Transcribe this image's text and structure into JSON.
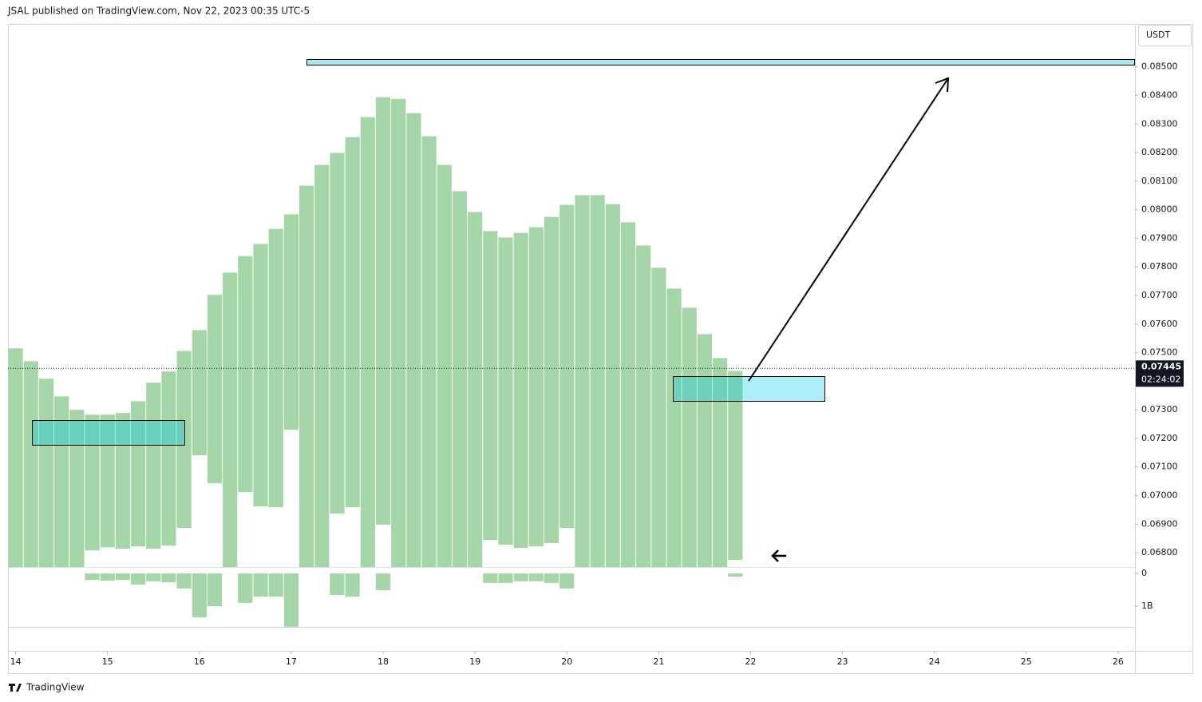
{
  "header": {
    "text": "JSAL published on TradingView.com, Nov 22, 2023 00:35 UTC-5"
  },
  "footer": {
    "brand": "TradingView"
  },
  "chart_data": {
    "type": "range-bar",
    "currency": "USDT",
    "color": "#a5d6a7",
    "volume_color": "#a5d6a7",
    "tops": [
      0.07515,
      0.0747,
      0.07409,
      0.07347,
      0.073,
      0.07283,
      0.07283,
      0.07289,
      0.0733,
      0.07395,
      0.07434,
      0.07506,
      0.07579,
      0.07702,
      0.0778,
      0.07838,
      0.0788,
      0.07933,
      0.07984,
      0.08084,
      0.08157,
      0.08199,
      0.08254,
      0.08324,
      0.08394,
      0.08388,
      0.08338,
      0.08257,
      0.08157,
      0.08065,
      0.07992,
      0.07925,
      0.07903,
      0.07919,
      0.07939,
      0.07975,
      0.08017,
      0.08051,
      0.08051,
      0.0802,
      0.07956,
      0.07875,
      0.07797,
      0.07724,
      0.07657,
      0.07565,
      0.07481,
      0.07436
    ],
    "bottoms": [
      0.0675,
      0.0675,
      0.0675,
      0.0675,
      0.0675,
      0.06808,
      0.06819,
      0.06814,
      0.06822,
      0.06814,
      0.06825,
      0.06887,
      0.07141,
      0.07043,
      0.0675,
      0.07012,
      0.06962,
      0.06959,
      0.0723,
      0.0675,
      0.0675,
      0.06937,
      0.06959,
      0.0675,
      0.06898,
      0.0675,
      0.0675,
      0.0675,
      0.0675,
      0.0675,
      0.0675,
      0.06845,
      0.06828,
      0.06817,
      0.06822,
      0.06834,
      0.06887,
      0.0675,
      0.0675,
      0.0675,
      0.0675,
      0.0675,
      0.0675,
      0.0675,
      0.0675,
      0.0675,
      0.0675,
      0.06775
    ],
    "volume": [
      0,
      0,
      0,
      0,
      0,
      200000000,
      220000000,
      200000000,
      340000000,
      240000000,
      270000000,
      460000000,
      1340000000,
      1000000000,
      0,
      900000000,
      710000000,
      710000000,
      1630000000,
      0,
      0,
      660000000,
      710000000,
      0,
      510000000,
      0,
      0,
      0,
      0,
      0,
      0,
      290000000,
      290000000,
      240000000,
      240000000,
      290000000,
      460000000,
      0,
      0,
      0,
      0,
      0,
      0,
      0,
      0,
      0,
      0,
      100000000
    ],
    "xlim": [
      -0.5,
      73.1
    ],
    "xticks": [
      {
        "value": 0,
        "label": "14"
      },
      {
        "value": 6,
        "label": "15"
      },
      {
        "value": 12,
        "label": "16"
      },
      {
        "value": 18,
        "label": "17"
      },
      {
        "value": 24,
        "label": "18"
      },
      {
        "value": 30,
        "label": "19"
      },
      {
        "value": 36,
        "label": "20"
      },
      {
        "value": 42,
        "label": "21"
      },
      {
        "value": 48,
        "label": "22"
      },
      {
        "value": 54,
        "label": "23"
      },
      {
        "value": 60,
        "label": "24"
      },
      {
        "value": 66,
        "label": "25"
      },
      {
        "value": 72,
        "label": "26"
      }
    ],
    "ylim": [
      0.0675,
      0.0865
    ],
    "yticks": [
      {
        "value": 0.085,
        "label": "0.08500"
      },
      {
        "value": 0.084,
        "label": "0.08400"
      },
      {
        "value": 0.083,
        "label": "0.08300"
      },
      {
        "value": 0.082,
        "label": "0.08200"
      },
      {
        "value": 0.081,
        "label": "0.08100"
      },
      {
        "value": 0.08,
        "label": "0.08000"
      },
      {
        "value": 0.079,
        "label": "0.07900"
      },
      {
        "value": 0.078,
        "label": "0.07800"
      },
      {
        "value": 0.077,
        "label": "0.07700"
      },
      {
        "value": 0.076,
        "label": "0.07600"
      },
      {
        "value": 0.075,
        "label": "0.07500"
      },
      {
        "value": 0.074,
        "label": "0.07400"
      },
      {
        "value": 0.073,
        "label": "0.07300"
      },
      {
        "value": 0.072,
        "label": "0.07200"
      },
      {
        "value": 0.071,
        "label": "0.07100"
      },
      {
        "value": 0.07,
        "label": "0.07000"
      },
      {
        "value": 0.069,
        "label": "0.06900"
      },
      {
        "value": 0.068,
        "label": "0.06800"
      }
    ],
    "y2lim": [
      0,
      1634000000
    ],
    "y2ticks": [
      0,
      {
        "value": 1000000000,
        "label": "1B"
      }
    ],
    "last_price": 0.07445,
    "countdown": "02:24:02"
  }
}
